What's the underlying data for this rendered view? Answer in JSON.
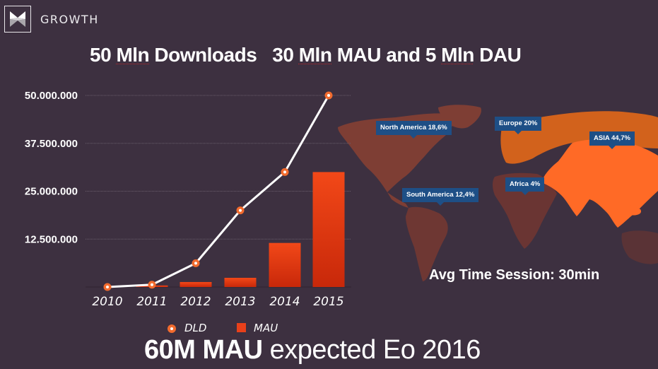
{
  "header": {
    "logo_icon": "bowtie-logo-icon",
    "section_title": "GROWTH"
  },
  "headline": {
    "part1_num": "50",
    "part1_unit": "Mln",
    "part1_rest": " Downloads",
    "part2_num": "30",
    "part2_unit": "Mln",
    "part2_rest": " MAU and 5 ",
    "part3_unit": "Mln",
    "part3_rest": " DAU"
  },
  "chart_data": {
    "type": "bar+line",
    "title": "",
    "xlabel": "",
    "ylabel": "",
    "categories": [
      "2010",
      "2011",
      "2012",
      "2013",
      "2014",
      "2015"
    ],
    "ylim": [
      0,
      50000000
    ],
    "y_ticks": [
      12500000,
      25000000,
      37500000,
      50000000
    ],
    "y_tick_labels": [
      "12.500.000",
      "25.000.000",
      "37.500.000",
      "50.000.000"
    ],
    "grid": true,
    "legend_position": "bottom",
    "series": [
      {
        "name": "DLD",
        "type": "line",
        "color": "#ffffff",
        "marker_color": "#f26b2e",
        "values": [
          0,
          600000,
          6200000,
          20000000,
          30000000,
          50000000
        ]
      },
      {
        "name": "MAU",
        "type": "bar",
        "color": "#e8401a",
        "values": [
          0,
          400000,
          1300000,
          2400000,
          11500000,
          30000000
        ]
      }
    ]
  },
  "legend": {
    "dld_label": "DLD",
    "mau_label": "MAU"
  },
  "map": {
    "colors": {
      "low": "#7a3d33",
      "mid": "#a04a35",
      "europe": "#d9621a",
      "asia": "#ff6a26",
      "label_bg": "#1e4f86"
    },
    "regions": [
      {
        "label": "North America 18,6%"
      },
      {
        "label": "Europe 20%"
      },
      {
        "label": "ASIA 44,7%"
      },
      {
        "label": "Africa 4%"
      },
      {
        "label": "South America 12,4%"
      }
    ],
    "avg_session": "Avg Time Session: 30min"
  },
  "footer": {
    "bold": "60M MAU",
    "rest": " expected Eo 2016"
  }
}
